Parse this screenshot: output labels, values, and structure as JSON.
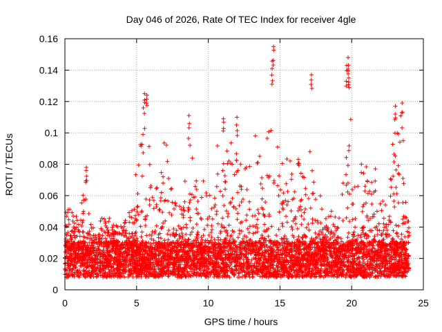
{
  "chart_data": {
    "type": "scatter",
    "title": "Day 046 of 2026, Rate Of TEC Index for receiver 4gle",
    "xlabel": "GPS time / hours",
    "ylabel": "ROTI / TECUs",
    "xlim": [
      0,
      25
    ],
    "ylim": [
      0,
      0.16
    ],
    "x_ticks": [
      "0",
      "5",
      "10",
      "15",
      "20",
      "25"
    ],
    "y_ticks": [
      "0",
      "0.02",
      "0.04",
      "0.06",
      "0.08",
      "0.1",
      "0.12",
      "0.14",
      "0.16"
    ],
    "grid": true,
    "legend": "none",
    "marker": "plus",
    "color": "#ff0000",
    "series": [
      {
        "x_range": [
          0,
          24
        ],
        "baseline_band": [
          0.008,
          0.03
        ],
        "upper_envelope": [
          [
            0.0,
            0.05
          ],
          [
            0.3,
            0.055
          ],
          [
            0.5,
            0.05
          ],
          [
            1.0,
            0.045
          ],
          [
            1.5,
            0.078
          ],
          [
            1.6,
            0.055
          ],
          [
            2.0,
            0.04
          ],
          [
            2.5,
            0.045
          ],
          [
            3.0,
            0.05
          ],
          [
            3.5,
            0.04
          ],
          [
            4.0,
            0.045
          ],
          [
            4.5,
            0.05
          ],
          [
            4.8,
            0.06
          ],
          [
            5.1,
            0.095
          ],
          [
            5.3,
            0.11
          ],
          [
            5.5,
            0.125
          ],
          [
            5.7,
            0.124
          ],
          [
            6.0,
            0.07
          ],
          [
            6.5,
            0.065
          ],
          [
            7.0,
            0.101
          ],
          [
            7.5,
            0.06
          ],
          [
            8.0,
            0.055
          ],
          [
            8.3,
            0.06
          ],
          [
            8.7,
            0.111
          ],
          [
            9.0,
            0.075
          ],
          [
            9.5,
            0.07
          ],
          [
            10.0,
            0.08
          ],
          [
            10.5,
            0.085
          ],
          [
            11.0,
            0.11
          ],
          [
            11.5,
            0.09
          ],
          [
            12.0,
            0.11
          ],
          [
            12.5,
            0.085
          ],
          [
            13.0,
            0.09
          ],
          [
            13.3,
            0.105
          ],
          [
            13.7,
            0.09
          ],
          [
            14.0,
            0.09
          ],
          [
            14.3,
            0.12
          ],
          [
            14.5,
            0.155
          ],
          [
            14.7,
            0.11
          ],
          [
            15.0,
            0.075
          ],
          [
            15.3,
            0.093
          ],
          [
            15.6,
            0.08
          ],
          [
            16.0,
            0.102
          ],
          [
            16.5,
            0.075
          ],
          [
            17.0,
            0.095
          ],
          [
            17.5,
            0.06
          ],
          [
            18.0,
            0.06
          ],
          [
            18.5,
            0.055
          ],
          [
            19.0,
            0.045
          ],
          [
            19.5,
            0.075
          ],
          [
            19.7,
            0.148
          ],
          [
            19.9,
            0.115
          ],
          [
            20.3,
            0.06
          ],
          [
            20.8,
            0.09
          ],
          [
            21.2,
            0.075
          ],
          [
            21.6,
            0.088
          ],
          [
            22.0,
            0.06
          ],
          [
            22.5,
            0.055
          ],
          [
            23.0,
            0.117
          ],
          [
            23.3,
            0.1
          ],
          [
            23.5,
            0.119
          ],
          [
            23.8,
            0.05
          ],
          [
            24.0,
            0.045
          ]
        ],
        "peaks": [
          [
            5.55,
            0.125
          ],
          [
            5.72,
            0.124
          ],
          [
            8.65,
            0.111
          ],
          [
            14.55,
            0.155
          ],
          [
            14.45,
            0.141
          ],
          [
            17.2,
            0.137
          ],
          [
            19.75,
            0.148
          ],
          [
            19.65,
            0.143
          ],
          [
            19.8,
            0.135
          ],
          [
            23.05,
            0.117
          ],
          [
            23.52,
            0.119
          ],
          [
            1.5,
            0.078
          ],
          [
            12.0,
            0.11
          ],
          [
            11.05,
            0.109
          ]
        ]
      }
    ]
  }
}
